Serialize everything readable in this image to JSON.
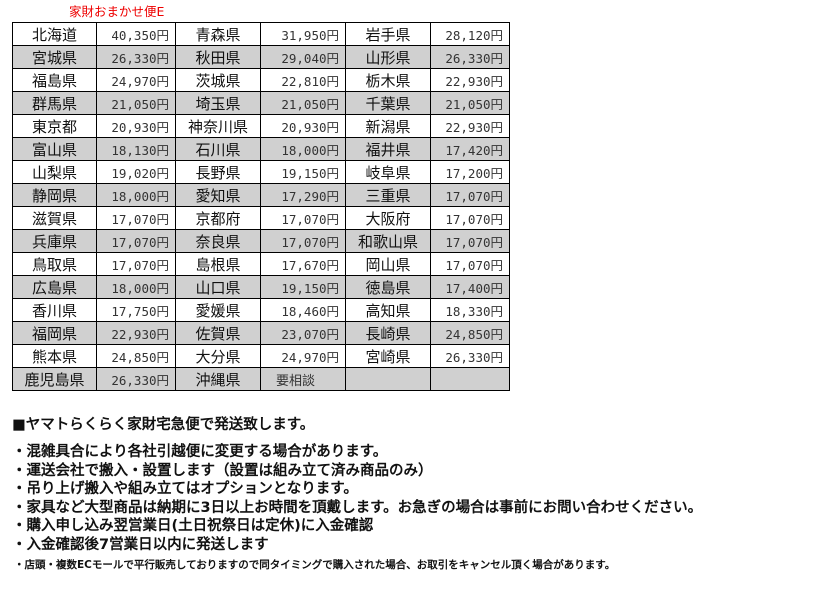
{
  "title": "家財おまかせ便E",
  "rows": [
    [
      [
        "北海道",
        "40,350円"
      ],
      [
        "青森県",
        "31,950円"
      ],
      [
        "岩手県",
        "28,120円"
      ]
    ],
    [
      [
        "宮城県",
        "26,330円"
      ],
      [
        "秋田県",
        "29,040円"
      ],
      [
        "山形県",
        "26,330円"
      ]
    ],
    [
      [
        "福島県",
        "24,970円"
      ],
      [
        "茨城県",
        "22,810円"
      ],
      [
        "栃木県",
        "22,930円"
      ]
    ],
    [
      [
        "群馬県",
        "21,050円"
      ],
      [
        "埼玉県",
        "21,050円"
      ],
      [
        "千葉県",
        "21,050円"
      ]
    ],
    [
      [
        "東京都",
        "20,930円"
      ],
      [
        "神奈川県",
        "20,930円"
      ],
      [
        "新潟県",
        "22,930円"
      ]
    ],
    [
      [
        "富山県",
        "18,130円"
      ],
      [
        "石川県",
        "18,000円"
      ],
      [
        "福井県",
        "17,420円"
      ]
    ],
    [
      [
        "山梨県",
        "19,020円"
      ],
      [
        "長野県",
        "19,150円"
      ],
      [
        "岐阜県",
        "17,200円"
      ]
    ],
    [
      [
        "静岡県",
        "18,000円"
      ],
      [
        "愛知県",
        "17,290円"
      ],
      [
        "三重県",
        "17,070円"
      ]
    ],
    [
      [
        "滋賀県",
        "17,070円"
      ],
      [
        "京都府",
        "17,070円"
      ],
      [
        "大阪府",
        "17,070円"
      ]
    ],
    [
      [
        "兵庫県",
        "17,070円"
      ],
      [
        "奈良県",
        "17,070円"
      ],
      [
        "和歌山県",
        "17,070円"
      ]
    ],
    [
      [
        "鳥取県",
        "17,070円"
      ],
      [
        "島根県",
        "17,670円"
      ],
      [
        "岡山県",
        "17,070円"
      ]
    ],
    [
      [
        "広島県",
        "18,000円"
      ],
      [
        "山口県",
        "19,150円"
      ],
      [
        "徳島県",
        "17,400円"
      ]
    ],
    [
      [
        "香川県",
        "17,750円"
      ],
      [
        "愛媛県",
        "18,460円"
      ],
      [
        "高知県",
        "18,330円"
      ]
    ],
    [
      [
        "福岡県",
        "22,930円"
      ],
      [
        "佐賀県",
        "23,070円"
      ],
      [
        "長崎県",
        "24,850円"
      ]
    ],
    [
      [
        "熊本県",
        "24,850円"
      ],
      [
        "大分県",
        "24,970円"
      ],
      [
        "宮崎県",
        "26,330円"
      ]
    ],
    [
      [
        "鹿児島県",
        "26,330円"
      ],
      [
        "沖縄県",
        "要相談"
      ],
      [
        "",
        ""
      ]
    ]
  ],
  "notes": {
    "heading": "■ヤマトらくらく家財宅急便で発送致します。",
    "bullets": [
      "・混雑具合により各社引越便に変更する場合があります。",
      "・運送会社で搬入・設置します（設置は組み立て済み商品のみ）",
      "・吊り上げ搬入や組み立てはオプションとなります。",
      "・家具など大型商品は納期に3日以上お時間を頂戴します。お急ぎの場合は事前にお問い合わせください。",
      "・購入申し込み翌営業日(土日祝祭日は定休)に入金確認",
      "・入金確認後7営業日以内に発送します"
    ],
    "small": "・店頭・複数ECモールで平行販売しておりますので同タイミングで購入された場合、お取引をキャンセル頂く場合があります。"
  }
}
